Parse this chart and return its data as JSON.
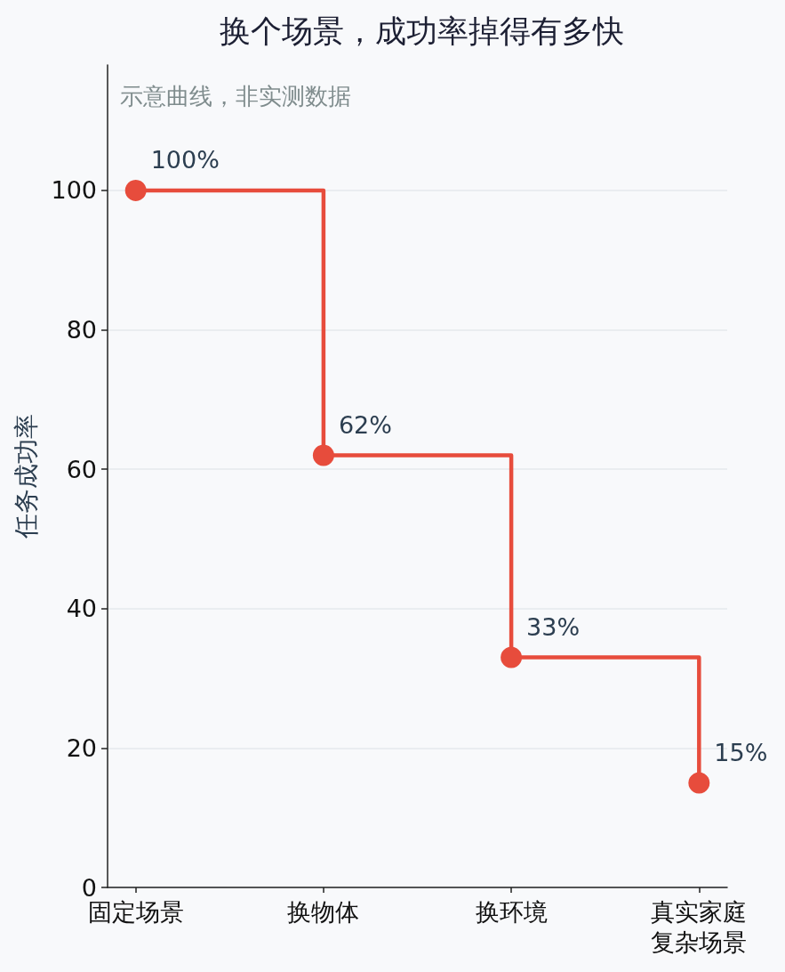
{
  "chart_data": {
    "type": "step",
    "title": "换个场景，成功率掉得有多快",
    "ylabel": "任务成功率",
    "annotations": [
      "示意曲线，非实测数据"
    ],
    "categories": [
      "固定场景",
      "换物体",
      "换环境",
      "真实家庭复杂场景"
    ],
    "values": [
      100,
      62,
      33,
      15
    ],
    "color": "#e74c3c",
    "value_labels": [
      "100%",
      "62%",
      "33%",
      "15%"
    ],
    "ylim": [
      0,
      118
    ],
    "yticks": [
      0,
      20,
      40,
      60,
      80,
      100
    ],
    "grid": "y",
    "marker": "circle",
    "line_style": "solid"
  }
}
